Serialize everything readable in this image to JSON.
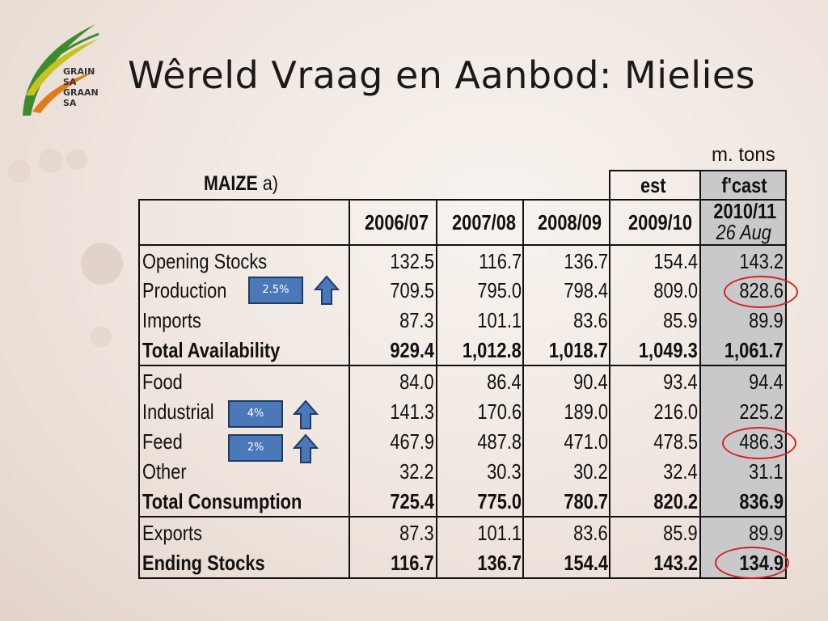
{
  "logo": {
    "line1": "GRAIN SA",
    "line2": "GRAAN SA",
    "colors": {
      "green": "#3d8b2f",
      "orange": "#e07b1a",
      "yellow": "#c8c21c"
    }
  },
  "title": "Wêreld Vraag en Aanbod: Mielies",
  "table": {
    "unit": "m. tons",
    "label": "MAIZE",
    "label_suffix": "a)",
    "est_label": "est",
    "fcast_label": "f'cast",
    "columns": [
      "2006/07",
      "2007/08",
      "2008/09",
      "2009/10"
    ],
    "fcast_column": "2010/11",
    "fcast_date": "26 Aug",
    "sections": [
      {
        "rows": [
          {
            "label": "Opening Stocks",
            "values": [
              "132.5",
              "116.7",
              "136.7",
              "154.4",
              "143.2"
            ],
            "bold": false
          },
          {
            "label": "Production",
            "values": [
              "709.5",
              "795.0",
              "798.4",
              "809.0",
              "828.6"
            ],
            "bold": false
          },
          {
            "label": "Imports",
            "values": [
              "87.3",
              "101.1",
              "83.6",
              "85.9",
              "89.9"
            ],
            "bold": false
          },
          {
            "label": "Total Availability",
            "values": [
              "929.4",
              "1,012.8",
              "1,018.7",
              "1,049.3",
              "1,061.7"
            ],
            "bold": true
          }
        ]
      },
      {
        "rows": [
          {
            "label": "Food",
            "values": [
              "84.0",
              "86.4",
              "90.4",
              "93.4",
              "94.4"
            ],
            "bold": false
          },
          {
            "label": "Industrial",
            "values": [
              "141.3",
              "170.6",
              "189.0",
              "216.0",
              "225.2"
            ],
            "bold": false
          },
          {
            "label": "Feed",
            "values": [
              "467.9",
              "487.8",
              "471.0",
              "478.5",
              "486.3"
            ],
            "bold": false
          },
          {
            "label": "Other",
            "values": [
              "32.2",
              "30.3",
              "30.2",
              "32.4",
              "31.1"
            ],
            "bold": false
          },
          {
            "label": "Total Consumption",
            "values": [
              "725.4",
              "775.0",
              "780.7",
              "820.2",
              "836.9"
            ],
            "bold": true
          }
        ]
      },
      {
        "rows": [
          {
            "label": "Exports",
            "values": [
              "87.3",
              "101.1",
              "83.6",
              "85.9",
              "89.9"
            ],
            "bold": false
          },
          {
            "label": "Ending Stocks",
            "values": [
              "116.7",
              "136.7",
              "154.4",
              "143.2",
              "134.9"
            ],
            "bold": true
          }
        ]
      }
    ],
    "fcast_shade": "#c9c9cb"
  },
  "badges": [
    {
      "row": "Production",
      "text": "2.5%",
      "icon": "up-arrow-icon"
    },
    {
      "row": "Industrial",
      "text": "4%",
      "icon": "up-arrow-icon"
    },
    {
      "row": "Feed",
      "text": "2%",
      "icon": "up-arrow-icon"
    }
  ],
  "highlighted_values": [
    "828.6",
    "486.3",
    "134.9"
  ],
  "highlight_color": "#d92020"
}
